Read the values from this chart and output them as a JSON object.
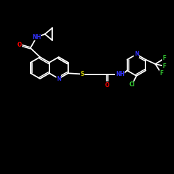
{
  "background": "#000000",
  "bond_color": "#ffffff",
  "O_color": "#ff0000",
  "N_color": "#3333ff",
  "S_color": "#cccc00",
  "Cl_color": "#33cc33",
  "F_color": "#33cc33",
  "lw": 1.3,
  "dlw": 1.1,
  "dgap": 0.038,
  "figsize": [
    2.5,
    2.5
  ],
  "dpi": 100,
  "fs": 5.5,
  "xlim": [
    0,
    10
  ],
  "ylim": [
    0,
    10
  ]
}
